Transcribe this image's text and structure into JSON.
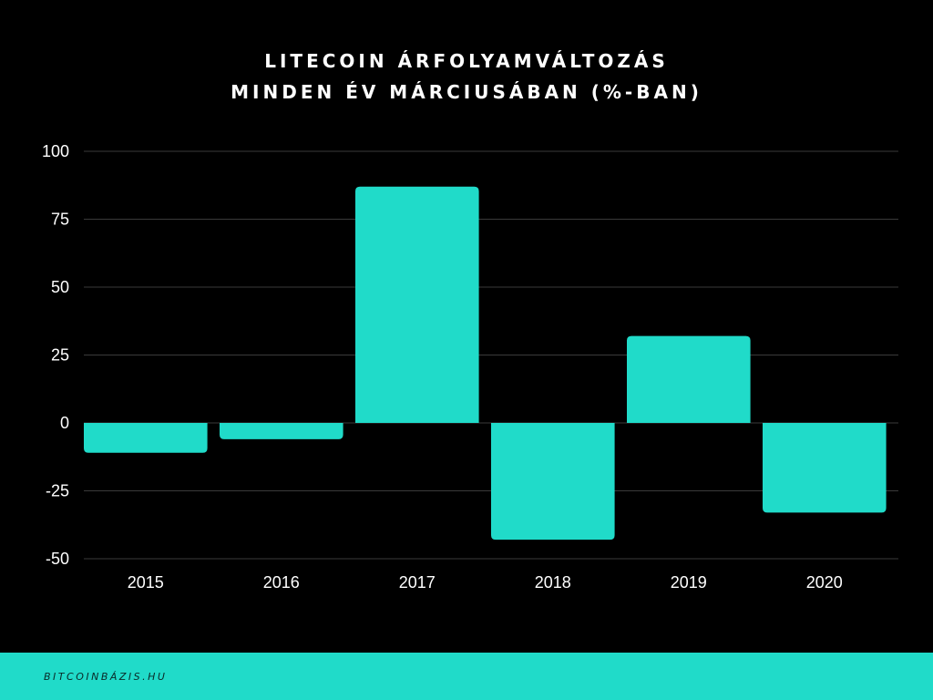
{
  "chart_data": {
    "type": "bar",
    "title_lines": [
      "LITECOIN ÁRFOLYAMVÁLTOZÁS",
      "MINDEN ÉV MÁRCIUSÁBAN (%-BAN)"
    ],
    "categories": [
      "2015",
      "2016",
      "2017",
      "2018",
      "2019",
      "2020"
    ],
    "values": [
      -11,
      -6,
      87,
      -43,
      32,
      -33
    ],
    "ylim": [
      -50,
      100
    ],
    "yticks": [
      100,
      75,
      50,
      25,
      0,
      -25,
      -50
    ],
    "grid": true,
    "legend": "none",
    "bar_color": "#20dbc9"
  },
  "footer": {
    "text": "BITCOINBÁZIS.HU",
    "background": "#20dbc9"
  }
}
